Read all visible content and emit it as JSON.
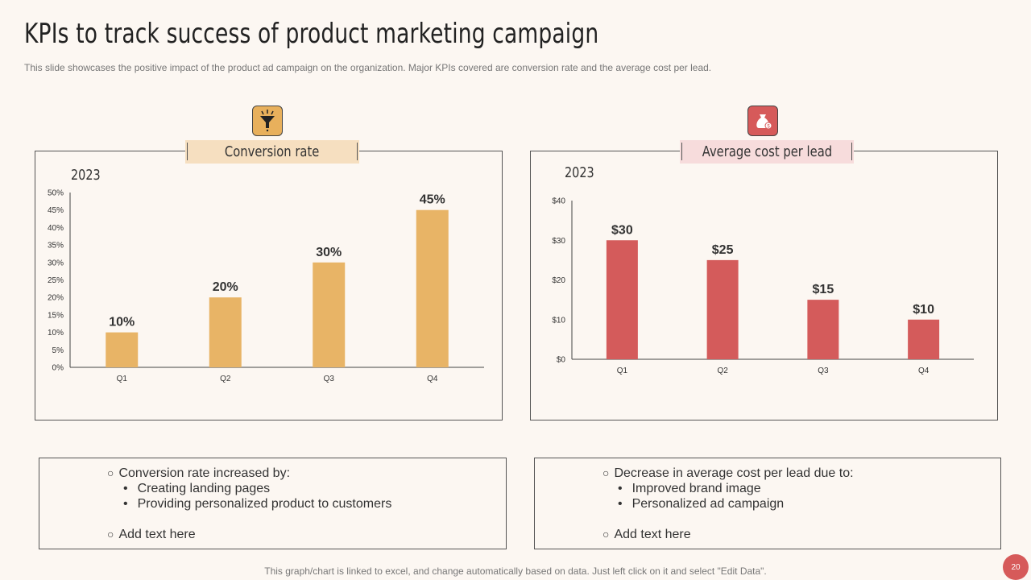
{
  "header": {
    "title": "KPIs to track success of product marketing campaign",
    "subtitle": "This slide showcases the positive impact of the product ad campaign on the organization. Major KPIs covered are conversion rate and the average cost per lead."
  },
  "colors": {
    "orange_bar": "#e8b466",
    "red_bar": "#d45b5b",
    "orange_label_bg": "#f6dfc0",
    "red_label_bg": "#f7dcdc",
    "orange_icon": "#e8b05c",
    "red_icon": "#d65a5a"
  },
  "left_panel": {
    "label": "Conversion rate",
    "icon": "funnel-icon",
    "year": "2023",
    "bullets": {
      "main": "Conversion rate increased by:",
      "subs": [
        "Creating landing pages",
        "Providing personalized product to  customers"
      ],
      "extra": "Add text here"
    }
  },
  "right_panel": {
    "label": "Average cost per lead",
    "icon": "money-bag-icon",
    "year": "2023",
    "bullets": {
      "main": "Decrease in average cost per lead due to:",
      "subs": [
        "Improved brand image",
        "Personalized ad campaign"
      ],
      "extra": "Add text here"
    }
  },
  "chart_data": [
    {
      "type": "bar",
      "title": "Conversion rate",
      "categories": [
        "Q1",
        "Q2",
        "Q3",
        "Q4"
      ],
      "values": [
        10,
        20,
        30,
        45
      ],
      "data_labels": [
        "10%",
        "20%",
        "30%",
        "45%"
      ],
      "yticks": [
        "0%",
        "5%",
        "10%",
        "15%",
        "20%",
        "25%",
        "30%",
        "35%",
        "40%",
        "45%",
        "50%"
      ],
      "ylim": [
        0,
        50
      ],
      "xlabel": "",
      "ylabel": ""
    },
    {
      "type": "bar",
      "title": "Average cost per lead",
      "categories": [
        "Q1",
        "Q2",
        "Q3",
        "Q4"
      ],
      "values": [
        30,
        25,
        15,
        10
      ],
      "data_labels": [
        "$30",
        "$25",
        "$15",
        "$10"
      ],
      "yticks": [
        "$0",
        "$10",
        "$20",
        "$30",
        "$40"
      ],
      "ylim": [
        0,
        40
      ],
      "xlabel": "",
      "ylabel": ""
    }
  ],
  "footer": {
    "text": "This graph/chart is linked to excel,  and change automatically based on data. Just left click on it and select \"Edit Data\".",
    "page": "20"
  }
}
